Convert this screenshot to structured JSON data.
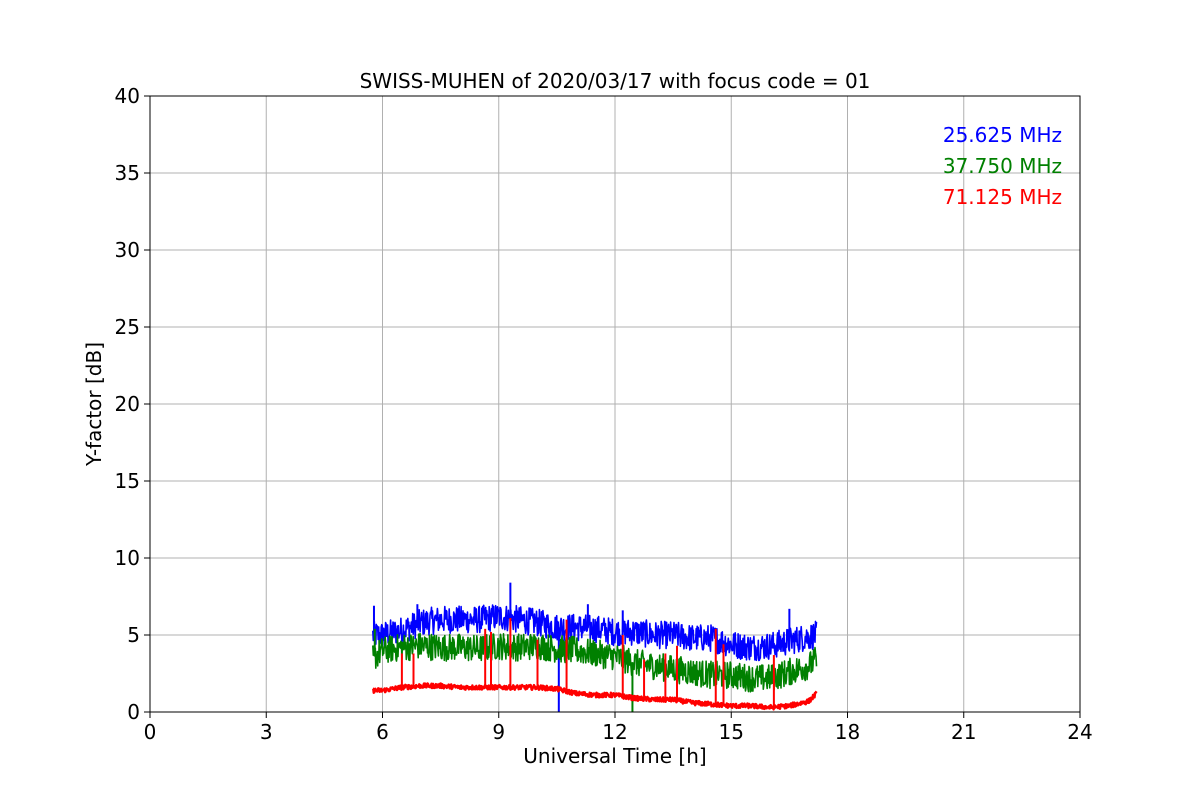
{
  "chart_data": {
    "type": "line",
    "title": "SWISS-MUHEN of 2020/03/17 with focus code = 01",
    "xlabel": "Universal Time [h]",
    "ylabel": "Y-factor [dB]",
    "xlim": [
      0,
      24
    ],
    "ylim": [
      0,
      40
    ],
    "xticks": [
      0,
      3,
      6,
      9,
      12,
      15,
      18,
      21,
      24
    ],
    "yticks": [
      0,
      5,
      10,
      15,
      20,
      25,
      30,
      35,
      40
    ],
    "grid": true,
    "legend_placement": "top-right",
    "series": [
      {
        "name": "25.625 MHz",
        "color": "#0000ff",
        "x": [
          5.75,
          6.0,
          6.5,
          7.0,
          7.5,
          8.0,
          8.5,
          9.0,
          9.5,
          10.0,
          10.5,
          11.0,
          11.5,
          12.0,
          12.5,
          13.0,
          13.5,
          14.0,
          14.5,
          15.0,
          15.5,
          16.0,
          16.5,
          17.0,
          17.2
        ],
        "y": [
          5.0,
          5.0,
          5.3,
          5.8,
          6.0,
          6.0,
          6.0,
          6.2,
          6.0,
          5.8,
          5.5,
          5.5,
          5.4,
          5.2,
          5.2,
          5.0,
          5.0,
          4.8,
          4.8,
          4.4,
          4.2,
          4.3,
          4.6,
          4.9,
          5.0
        ],
        "spikes": [
          [
            5.78,
            6.9
          ],
          [
            6.9,
            7.0
          ],
          [
            9.3,
            8.4
          ],
          [
            10.55,
            0.0
          ],
          [
            11.3,
            7.0
          ],
          [
            12.2,
            6.6
          ],
          [
            16.5,
            6.7
          ]
        ]
      },
      {
        "name": "37.750 MHz",
        "color": "#008000",
        "x": [
          5.75,
          6.0,
          6.5,
          7.0,
          7.5,
          8.0,
          8.5,
          9.0,
          9.5,
          10.0,
          10.5,
          11.0,
          11.5,
          12.0,
          12.5,
          13.0,
          13.5,
          14.0,
          14.5,
          15.0,
          15.5,
          16.0,
          16.5,
          17.0,
          17.2
        ],
        "y": [
          3.5,
          4.0,
          4.2,
          4.3,
          4.2,
          4.2,
          4.1,
          4.3,
          4.2,
          4.3,
          4.1,
          4.0,
          3.8,
          3.6,
          3.2,
          3.0,
          2.8,
          2.6,
          2.4,
          2.4,
          2.2,
          2.2,
          2.6,
          3.0,
          3.4
        ],
        "spikes": [
          [
            12.45,
            0.0
          ],
          [
            5.8,
            5.4
          ]
        ]
      },
      {
        "name": "71.125 MHz",
        "color": "#ff0000",
        "x": [
          5.75,
          6.0,
          6.5,
          7.0,
          7.5,
          8.0,
          8.5,
          9.0,
          9.5,
          10.0,
          10.5,
          11.0,
          11.5,
          12.0,
          12.5,
          13.0,
          13.5,
          14.0,
          14.5,
          15.0,
          15.5,
          16.0,
          16.5,
          17.0,
          17.2
        ],
        "y": [
          1.4,
          1.4,
          1.6,
          1.7,
          1.7,
          1.6,
          1.6,
          1.6,
          1.6,
          1.6,
          1.5,
          1.2,
          1.1,
          1.1,
          0.9,
          0.8,
          0.8,
          0.6,
          0.5,
          0.4,
          0.4,
          0.3,
          0.4,
          0.7,
          1.2
        ],
        "spikes": [
          [
            6.5,
            3.8
          ],
          [
            6.8,
            3.8
          ],
          [
            8.65,
            5.4
          ],
          [
            8.8,
            5.2
          ],
          [
            9.3,
            6.1
          ],
          [
            10.0,
            4.7
          ],
          [
            10.75,
            6.0
          ],
          [
            12.2,
            5.0
          ],
          [
            12.75,
            3.4
          ],
          [
            13.3,
            3.8
          ],
          [
            13.6,
            4.3
          ],
          [
            14.6,
            5.4
          ],
          [
            14.8,
            4.4
          ],
          [
            16.1,
            3.7
          ]
        ]
      }
    ]
  }
}
